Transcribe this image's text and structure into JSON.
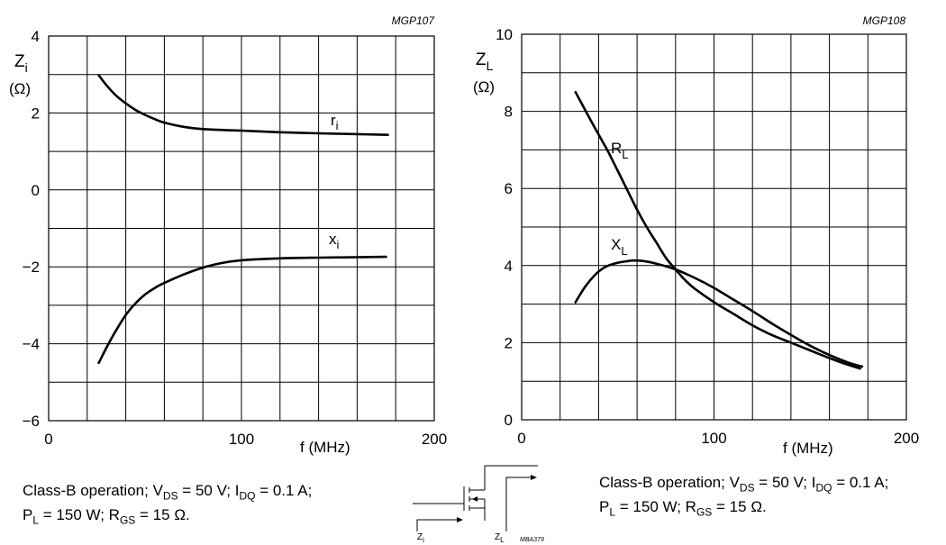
{
  "chart_data": [
    {
      "type": "line",
      "code": "MGP107",
      "ylabel": {
        "main": "Z",
        "sub": "i",
        "unit": "(Ω)"
      },
      "xlabel": "f (MHz)",
      "xlim": [
        0,
        200
      ],
      "ylim": [
        -6,
        4
      ],
      "xticks": [
        "0",
        "100",
        "200"
      ],
      "yticks": [
        "4",
        "2",
        "0",
        "−2",
        "−4",
        "−6"
      ],
      "grid": true,
      "series": [
        {
          "name": "ri",
          "label_main": "r",
          "label_sub": "i",
          "x": [
            26,
            30,
            35,
            40,
            45,
            50,
            55,
            60,
            70,
            80,
            100,
            120,
            140,
            160,
            176
          ],
          "y": [
            2.98,
            2.72,
            2.45,
            2.25,
            2.08,
            1.95,
            1.84,
            1.75,
            1.64,
            1.58,
            1.54,
            1.5,
            1.47,
            1.45,
            1.43
          ]
        },
        {
          "name": "xi",
          "label_main": "x",
          "label_sub": "i",
          "x": [
            26,
            30,
            35,
            40,
            45,
            50,
            55,
            60,
            70,
            80,
            90,
            100,
            120,
            140,
            160,
            175
          ],
          "y": [
            -4.5,
            -4.1,
            -3.65,
            -3.25,
            -2.95,
            -2.72,
            -2.55,
            -2.42,
            -2.2,
            -2.02,
            -1.9,
            -1.83,
            -1.78,
            -1.76,
            -1.75,
            -1.74
          ]
        }
      ]
    },
    {
      "type": "line",
      "code": "MGP108",
      "ylabel": {
        "main": "Z",
        "sub": "L",
        "unit": "(Ω)"
      },
      "xlabel": "f (MHz)",
      "xlim": [
        0,
        200
      ],
      "ylim": [
        0,
        10
      ],
      "xticks": [
        "0",
        "100",
        "200"
      ],
      "yticks": [
        "10",
        "8",
        "6",
        "4",
        "2",
        "0"
      ],
      "grid": true,
      "series": [
        {
          "name": "RL",
          "label_main": "R",
          "label_sub": "L",
          "x": [
            28,
            35,
            40,
            45,
            50,
            55,
            60,
            65,
            70,
            75,
            80,
            85,
            90,
            100,
            110,
            120,
            130,
            140,
            150,
            160,
            170,
            176
          ],
          "y": [
            8.5,
            7.85,
            7.4,
            6.95,
            6.45,
            5.95,
            5.45,
            5.0,
            4.6,
            4.2,
            3.9,
            3.62,
            3.4,
            3.05,
            2.75,
            2.45,
            2.2,
            2.0,
            1.8,
            1.6,
            1.42,
            1.33
          ]
        },
        {
          "name": "XL",
          "label_main": "X",
          "label_sub": "L",
          "x": [
            28,
            33,
            38,
            43,
            48,
            53,
            58,
            63,
            70,
            80,
            90,
            100,
            110,
            120,
            130,
            140,
            150,
            160,
            170,
            177
          ],
          "y": [
            3.05,
            3.45,
            3.75,
            3.95,
            4.05,
            4.1,
            4.13,
            4.12,
            4.05,
            3.9,
            3.68,
            3.42,
            3.12,
            2.82,
            2.5,
            2.2,
            1.92,
            1.68,
            1.48,
            1.38
          ]
        }
      ]
    }
  ],
  "captions": {
    "left": {
      "l1_a": "Class-B operation; V",
      "l1_b": "DS",
      "l1_c": " = 50 V; I",
      "l1_d": "DQ",
      "l1_e": " = 0.1 A;",
      "l2_a": "P",
      "l2_b": "L",
      "l2_c": " = 150 W; R",
      "l2_d": "GS",
      "l2_e": " = 15 Ω."
    },
    "right": {
      "l1_a": "Class-B operation; V",
      "l1_b": "DS",
      "l1_c": " = 50 V; I",
      "l1_d": "DQ",
      "l1_e": " = 0.1 A;",
      "l2_a": "P",
      "l2_b": "L",
      "l2_c": " = 150 W; R",
      "l2_d": "GS",
      "l2_e": " = 15 Ω."
    }
  },
  "schematic": {
    "zi_main": "Z",
    "zi_sub": "i",
    "zl_main": "Z",
    "zl_sub": "L",
    "code": "MBA379"
  }
}
